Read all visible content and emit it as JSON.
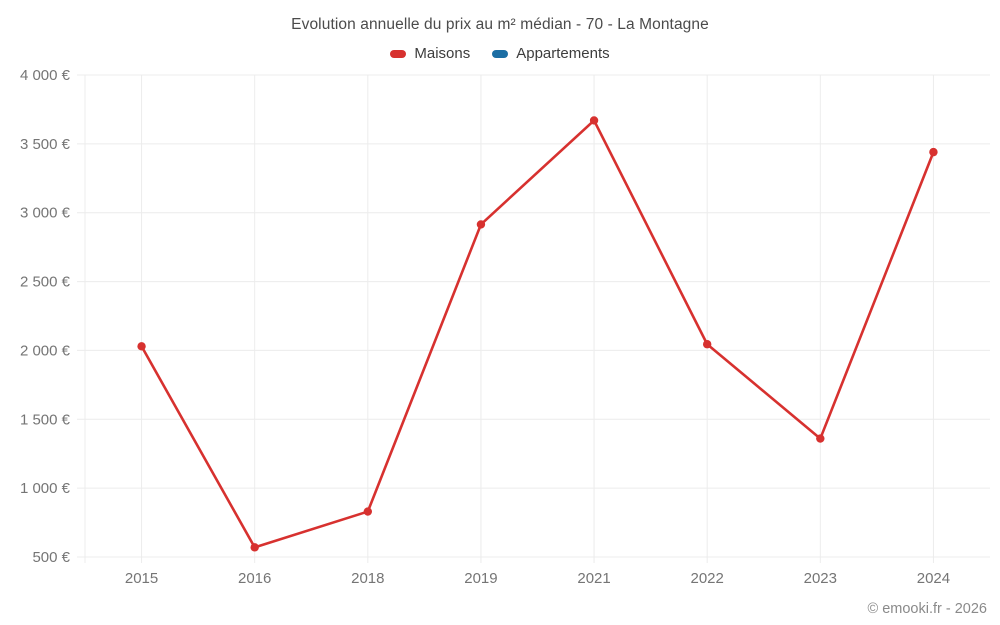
{
  "title": "Evolution annuelle du prix au m² médian - 70 - La Montagne",
  "footer": "© emooki.fr - 2026",
  "colors": {
    "maisons": "#d7312f",
    "appartements": "#1c6ea4",
    "gridline": "#ececec",
    "tick_text": "#757575",
    "title_text": "#4b4b4b"
  },
  "legend": {
    "items": [
      {
        "label": "Maisons",
        "color": "#d7312f"
      },
      {
        "label": "Appartements",
        "color": "#1c6ea4"
      }
    ]
  },
  "chart_data": {
    "type": "line",
    "title": "Evolution annuelle du prix au m² médian - 70 - La Montagne",
    "categories": [
      "2015",
      "2016",
      "2018",
      "2019",
      "2021",
      "2022",
      "2023",
      "2024"
    ],
    "series": [
      {
        "name": "Maisons",
        "color": "#d7312f",
        "values": [
          2030,
          570,
          830,
          2915,
          3670,
          2045,
          1360,
          3440
        ]
      },
      {
        "name": "Appartements",
        "color": "#1c6ea4",
        "values": []
      }
    ],
    "xlabel": "",
    "ylabel": "",
    "ylim": [
      500,
      4000
    ],
    "y_ticks": [
      500,
      1000,
      1500,
      2000,
      2500,
      3000,
      3500,
      4000
    ],
    "y_tick_labels": [
      "500 €",
      "1 000 €",
      "1 500 €",
      "2 000 €",
      "2 500 €",
      "3 000 €",
      "3 500 €",
      "4 000 €"
    ],
    "grid": true,
    "legend_position": "top",
    "currency": "€"
  }
}
